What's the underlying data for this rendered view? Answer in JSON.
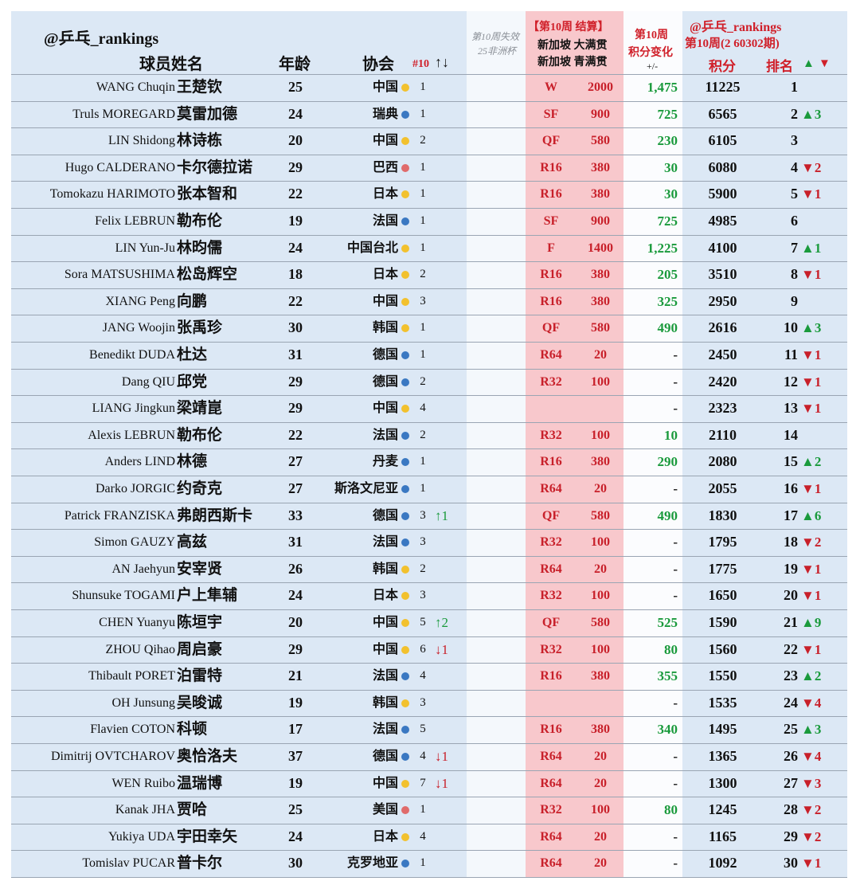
{
  "header": {
    "handle": "@乒乓_rankings",
    "name": "球员姓名",
    "age": "年龄",
    "assoc": "协会",
    "rank10": "#10",
    "arrows": "↑↓",
    "drop1": "第10周失效",
    "drop2": "25非洲杯",
    "event_title": "【第10周 结算】",
    "event1": "新加坡 大满贯",
    "event2": "新加坡 青满贯",
    "change1": "第10周",
    "change2": "积分变化",
    "change3": "+/-",
    "handle2": "@乒乓_rankings",
    "period": "第10周(2 60302期)",
    "points": "积分",
    "rank": "排名",
    "up": "▲",
    "down": "▼"
  },
  "rows": [
    {
      "en": "WANG Chuqin",
      "cn": "王楚钦",
      "age": 25,
      "assoc": "中国",
      "dot": "#f2c12e",
      "r10": 1,
      "round": "W",
      "pts": 2000,
      "chg": "1,475",
      "total": 11225,
      "rank": 1
    },
    {
      "en": "Truls MOREGARD",
      "cn": "莫雷加德",
      "age": 24,
      "assoc": "瑞典",
      "dot": "#3a78c2",
      "r10": 1,
      "round": "SF",
      "pts": 900,
      "chg": "725",
      "total": 6565,
      "rank": 2,
      "move": "▲3"
    },
    {
      "en": "LIN Shidong",
      "cn": "林诗栋",
      "age": 20,
      "assoc": "中国",
      "dot": "#f2c12e",
      "r10": 2,
      "round": "QF",
      "pts": 580,
      "chg": "230",
      "total": 6105,
      "rank": 3
    },
    {
      "en": "Hugo CALDERANO",
      "cn": "卡尔德拉诺",
      "age": 29,
      "assoc": "巴西",
      "dot": "#e06b6b",
      "r10": 1,
      "round": "R16",
      "pts": 380,
      "chg": "30",
      "total": 6080,
      "rank": 4,
      "move": "▼2"
    },
    {
      "en": "Tomokazu HARIMOTO",
      "cn": "张本智和",
      "age": 22,
      "assoc": "日本",
      "dot": "#f2c12e",
      "r10": 1,
      "round": "R16",
      "pts": 380,
      "chg": "30",
      "total": 5900,
      "rank": 5,
      "move": "▼1"
    },
    {
      "en": "Felix LEBRUN",
      "cn": "勒布伦",
      "age": 19,
      "assoc": "法国",
      "dot": "#3a78c2",
      "r10": 1,
      "round": "SF",
      "pts": 900,
      "chg": "725",
      "total": 4985,
      "rank": 6
    },
    {
      "en": "LIN Yun-Ju",
      "cn": "林昀儒",
      "age": 24,
      "assoc": "中国台北",
      "dot": "#f2c12e",
      "r10": 1,
      "round": "F",
      "pts": 1400,
      "chg": "1,225",
      "total": 4100,
      "rank": 7,
      "move": "▲1"
    },
    {
      "en": "Sora MATSUSHIMA",
      "cn": "松岛辉空",
      "age": 18,
      "assoc": "日本",
      "dot": "#f2c12e",
      "r10": 2,
      "round": "R16",
      "pts": 380,
      "chg": "205",
      "total": 3510,
      "rank": 8,
      "move": "▼1"
    },
    {
      "en": "XIANG Peng",
      "cn": "向鹏",
      "age": 22,
      "assoc": "中国",
      "dot": "#f2c12e",
      "r10": 3,
      "round": "R16",
      "pts": 380,
      "chg": "325",
      "total": 2950,
      "rank": 9
    },
    {
      "en": "JANG Woojin",
      "cn": "张禹珍",
      "age": 30,
      "assoc": "韩国",
      "dot": "#f2c12e",
      "r10": 1,
      "round": "QF",
      "pts": 580,
      "chg": "490",
      "total": 2616,
      "rank": 10,
      "move": "▲3"
    },
    {
      "en": "Benedikt DUDA",
      "cn": "杜达",
      "age": 31,
      "assoc": "德国",
      "dot": "#3a78c2",
      "r10": 1,
      "round": "R64",
      "pts": 20,
      "chg": "-",
      "total": 2450,
      "rank": 11,
      "move": "▼1"
    },
    {
      "en": "Dang QIU",
      "cn": "邱党",
      "age": 29,
      "assoc": "德国",
      "dot": "#3a78c2",
      "r10": 2,
      "round": "R32",
      "pts": 100,
      "chg": "-",
      "total": 2420,
      "rank": 12,
      "move": "▼1"
    },
    {
      "en": "LIANG Jingkun",
      "cn": "梁靖崑",
      "age": 29,
      "assoc": "中国",
      "dot": "#f2c12e",
      "r10": 4,
      "chg": "-",
      "total": 2323,
      "rank": 13,
      "move": "▼1"
    },
    {
      "en": "Alexis LEBRUN",
      "cn": "勒布伦",
      "age": 22,
      "assoc": "法国",
      "dot": "#3a78c2",
      "r10": 2,
      "round": "R32",
      "pts": 100,
      "chg": "10",
      "total": 2110,
      "rank": 14
    },
    {
      "en": "Anders LIND",
      "cn": "林德",
      "age": 27,
      "assoc": "丹麦",
      "dot": "#3a78c2",
      "r10": 1,
      "round": "R16",
      "pts": 380,
      "chg": "290",
      "total": 2080,
      "rank": 15,
      "move": "▲2"
    },
    {
      "en": "Darko JORGIC",
      "cn": "约奇克",
      "age": 27,
      "assoc": "斯洛文尼亚",
      "dot": "#3a78c2",
      "r10": 1,
      "round": "R64",
      "pts": 20,
      "chg": "-",
      "total": 2055,
      "rank": 16,
      "move": "▼1"
    },
    {
      "en": "Patrick FRANZISKA",
      "cn": "弗朗西斯卡",
      "age": 33,
      "assoc": "德国",
      "dot": "#3a78c2",
      "r10": 3,
      "m10": "↑1",
      "round": "QF",
      "pts": 580,
      "chg": "490",
      "total": 1830,
      "rank": 17,
      "move": "▲6"
    },
    {
      "en": "Simon GAUZY",
      "cn": "高兹",
      "age": 31,
      "assoc": "法国",
      "dot": "#3a78c2",
      "r10": 3,
      "round": "R32",
      "pts": 100,
      "chg": "-",
      "total": 1795,
      "rank": 18,
      "move": "▼2"
    },
    {
      "en": "AN Jaehyun",
      "cn": "安宰贤",
      "age": 26,
      "assoc": "韩国",
      "dot": "#f2c12e",
      "r10": 2,
      "round": "R64",
      "pts": 20,
      "chg": "-",
      "total": 1775,
      "rank": 19,
      "move": "▼1"
    },
    {
      "en": "Shunsuke TOGAMI",
      "cn": "户上隼辅",
      "age": 24,
      "assoc": "日本",
      "dot": "#f2c12e",
      "r10": 3,
      "round": "R32",
      "pts": 100,
      "chg": "-",
      "total": 1650,
      "rank": 20,
      "move": "▼1"
    },
    {
      "en": "CHEN Yuanyu",
      "cn": "陈垣宇",
      "age": 20,
      "assoc": "中国",
      "dot": "#f2c12e",
      "r10": 5,
      "m10": "↑2",
      "round": "QF",
      "pts": 580,
      "chg": "525",
      "total": 1590,
      "rank": 21,
      "move": "▲9"
    },
    {
      "en": "ZHOU Qihao",
      "cn": "周启豪",
      "age": 29,
      "assoc": "中国",
      "dot": "#f2c12e",
      "r10": 6,
      "m10": "↓1",
      "round": "R32",
      "pts": 100,
      "chg": "80",
      "total": 1560,
      "rank": 22,
      "move": "▼1"
    },
    {
      "en": "Thibault PORET",
      "cn": "泊雷特",
      "age": 21,
      "assoc": "法国",
      "dot": "#3a78c2",
      "r10": 4,
      "round": "R16",
      "pts": 380,
      "chg": "355",
      "total": 1550,
      "rank": 23,
      "move": "▲2"
    },
    {
      "en": "OH Junsung",
      "cn": "吴晙诚",
      "age": 19,
      "assoc": "韩国",
      "dot": "#f2c12e",
      "r10": 3,
      "chg": "-",
      "total": 1535,
      "rank": 24,
      "move": "▼4"
    },
    {
      "en": "Flavien COTON",
      "cn": "科顿",
      "age": 17,
      "assoc": "法国",
      "dot": "#3a78c2",
      "r10": 5,
      "round": "R16",
      "pts": 380,
      "chg": "340",
      "total": 1495,
      "rank": 25,
      "move": "▲3"
    },
    {
      "en": "Dimitrij OVTCHAROV",
      "cn": "奥恰洛夫",
      "age": 37,
      "assoc": "德国",
      "dot": "#3a78c2",
      "r10": 4,
      "m10": "↓1",
      "round": "R64",
      "pts": 20,
      "chg": "-",
      "total": 1365,
      "rank": 26,
      "move": "▼4"
    },
    {
      "en": "WEN Ruibo",
      "cn": "温瑞博",
      "age": 19,
      "assoc": "中国",
      "dot": "#f2c12e",
      "r10": 7,
      "m10": "↓1",
      "round": "R64",
      "pts": 20,
      "chg": "-",
      "total": 1300,
      "rank": 27,
      "move": "▼3"
    },
    {
      "en": "Kanak JHA",
      "cn": "贾哈",
      "age": 25,
      "assoc": "美国",
      "dot": "#e06b6b",
      "r10": 1,
      "round": "R32",
      "pts": 100,
      "chg": "80",
      "total": 1245,
      "rank": 28,
      "move": "▼2"
    },
    {
      "en": "Yukiya UDA",
      "cn": "宇田幸矢",
      "age": 24,
      "assoc": "日本",
      "dot": "#f2c12e",
      "r10": 4,
      "round": "R64",
      "pts": 20,
      "chg": "-",
      "total": 1165,
      "rank": 29,
      "move": "▼2"
    },
    {
      "en": "Tomislav PUCAR",
      "cn": "普卡尔",
      "age": 30,
      "assoc": "克罗地亚",
      "dot": "#3a78c2",
      "r10": 1,
      "round": "R64",
      "pts": 20,
      "chg": "-",
      "total": 1092,
      "rank": 30,
      "move": "▼1"
    }
  ]
}
